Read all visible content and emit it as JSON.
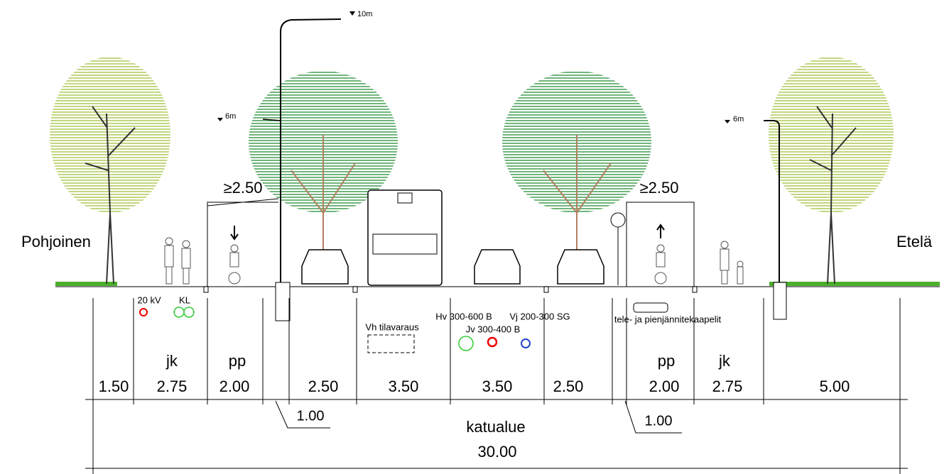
{
  "labels": {
    "north": "Pohjoinen",
    "south": "Etelä"
  },
  "clearances": [
    "≥2.50",
    "≥2.50"
  ],
  "heights": [
    "10m",
    "6m",
    "6m"
  ],
  "utilities": [
    "20 kV",
    "KL",
    "Vh tilavaraus",
    "Hv 300-600 B",
    "Jv 300-400 B",
    "Vj 200-300 SG",
    "tele- ja pienjännitekaapelit"
  ],
  "zones": [
    "jk",
    "pp",
    "pp",
    "jk"
  ],
  "widths": [
    "1.50",
    "2.75",
    "2.00",
    "2.50",
    "3.50",
    "3.50",
    "2.50",
    "2.00",
    "2.75",
    "5.00"
  ],
  "offsets": [
    "1.00",
    "1.00"
  ],
  "area": {
    "label": "katualue",
    "width": "30.00"
  }
}
